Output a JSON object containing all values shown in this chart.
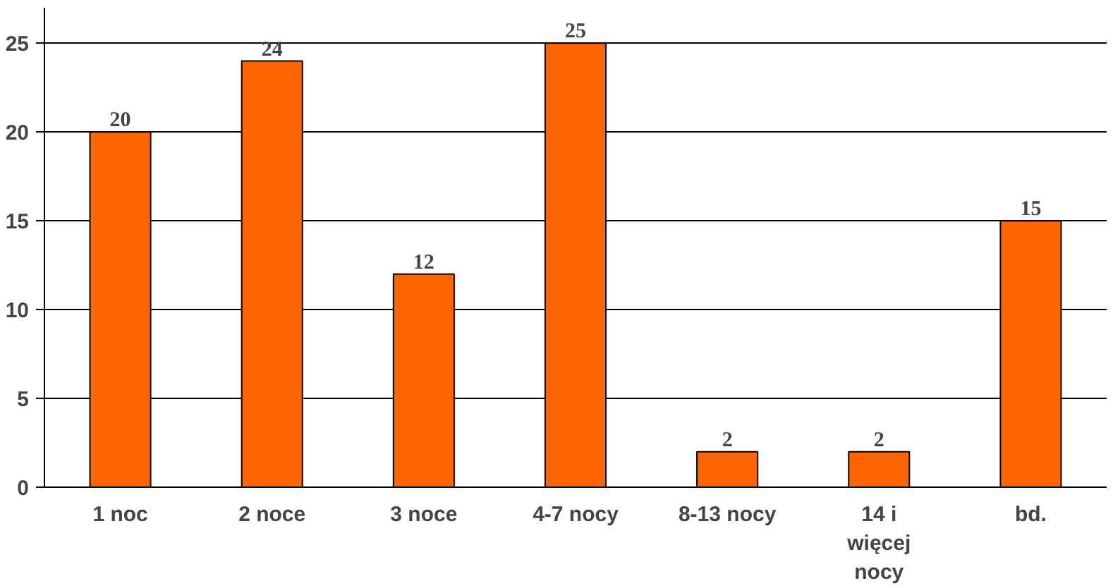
{
  "chart_data": {
    "type": "bar",
    "categories": [
      "1 noc",
      "2 noce",
      "3 noce",
      "4-7 nocy",
      "8-13 nocy",
      "14 i więcej nocy",
      "bd."
    ],
    "values": [
      20,
      24,
      12,
      25,
      2,
      2,
      15
    ],
    "color": "#ff6600",
    "ylim": [
      0,
      27
    ],
    "yticks": [
      0,
      5,
      10,
      15,
      20,
      25
    ],
    "grid": "y",
    "data_labels": true
  }
}
